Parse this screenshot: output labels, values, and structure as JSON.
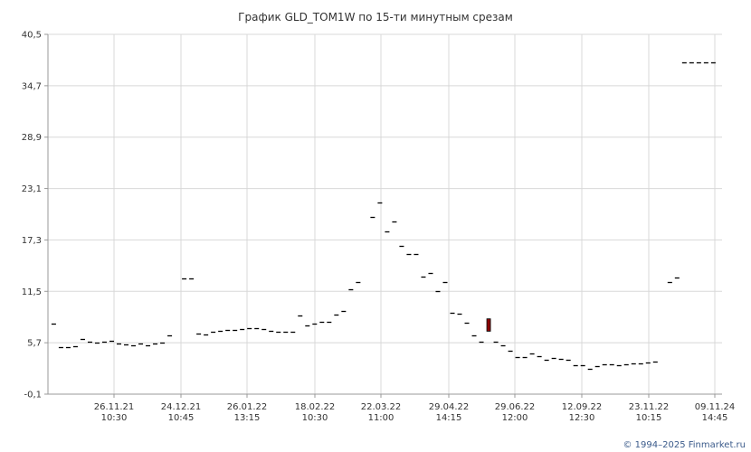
{
  "chart_data": {
    "type": "candlestick",
    "title": "График GLD_TOM1W по 15-ти минутным срезам",
    "ylim": [
      -0.1,
      40.5
    ],
    "yticks": [
      "40,5",
      "34,7",
      "28,9",
      "23,1",
      "17,3",
      "11,5",
      "5,7",
      "-0,1"
    ],
    "xticks": [
      {
        "date": "26.11.21",
        "time": "10:30"
      },
      {
        "date": "24.12.21",
        "time": "10:45"
      },
      {
        "date": "26.01.22",
        "time": "13:15"
      },
      {
        "date": "18.02.22",
        "time": "10:30"
      },
      {
        "date": "22.03.22",
        "time": "11:00"
      },
      {
        "date": "29.04.22",
        "time": "14:15"
      },
      {
        "date": "29.06.22",
        "time": "12:00"
      },
      {
        "date": "12.09.22",
        "time": "12:30"
      },
      {
        "date": "23.11.22",
        "time": "10:15"
      },
      {
        "date": "09.11.24",
        "time": "14:45"
      }
    ],
    "grid": true,
    "colors": {
      "flat": "#000000",
      "down": "#8b0000",
      "grid": "#d8d8d8",
      "axis": "#999999"
    },
    "values": [
      7.9,
      5.2,
      5.2,
      5.3,
      6.1,
      5.8,
      5.7,
      5.8,
      5.9,
      5.6,
      5.5,
      5.4,
      5.6,
      5.4,
      5.6,
      5.7,
      6.5,
      13.0,
      13.0,
      6.7,
      6.6,
      6.9,
      7.0,
      7.1,
      7.1,
      7.2,
      7.3,
      7.3,
      7.2,
      7.0,
      6.9,
      6.9,
      6.9,
      8.8,
      7.7,
      7.9,
      8.1,
      8.1,
      8.9,
      9.3,
      11.7,
      12.6,
      19.9,
      21.5,
      18.3,
      19.4,
      16.6,
      15.7,
      15.7,
      13.2,
      13.6,
      11.5,
      12.6,
      9.1,
      9.0,
      8.0,
      6.5,
      5.8,
      {
        "o": 8.4,
        "c": 7.0
      },
      5.8,
      5.4,
      4.8,
      4.1,
      4.1,
      4.5,
      4.2,
      3.8,
      4.0,
      3.9,
      3.8,
      3.2,
      3.2,
      2.8,
      3.1,
      3.3,
      3.3,
      3.2,
      3.3,
      3.4,
      3.4,
      3.5,
      3.6,
      12.5,
      13.1,
      37.3,
      37.3,
      37.3,
      37.3,
      37.3
    ],
    "xindex": [
      0,
      1,
      2,
      3,
      4,
      5,
      6,
      7,
      8,
      9,
      10,
      11,
      12,
      13,
      14,
      15,
      16,
      18,
      19,
      20,
      21,
      22,
      23,
      24,
      25,
      26,
      27,
      28,
      29,
      30,
      31,
      32,
      33,
      34,
      35,
      36,
      37,
      38,
      39,
      40,
      41,
      42,
      44,
      45,
      46,
      47,
      48,
      49,
      50,
      51,
      52,
      53,
      54,
      55,
      56,
      57,
      58,
      59,
      60,
      61,
      62,
      63,
      64,
      65,
      66,
      67,
      68,
      69,
      70,
      71,
      72,
      73,
      74,
      75,
      76,
      77,
      78,
      79,
      80,
      81,
      82,
      83,
      85,
      86,
      87,
      88,
      89,
      90,
      91
    ]
  },
  "footer": "© 1994–2025 Finmarket.ru"
}
